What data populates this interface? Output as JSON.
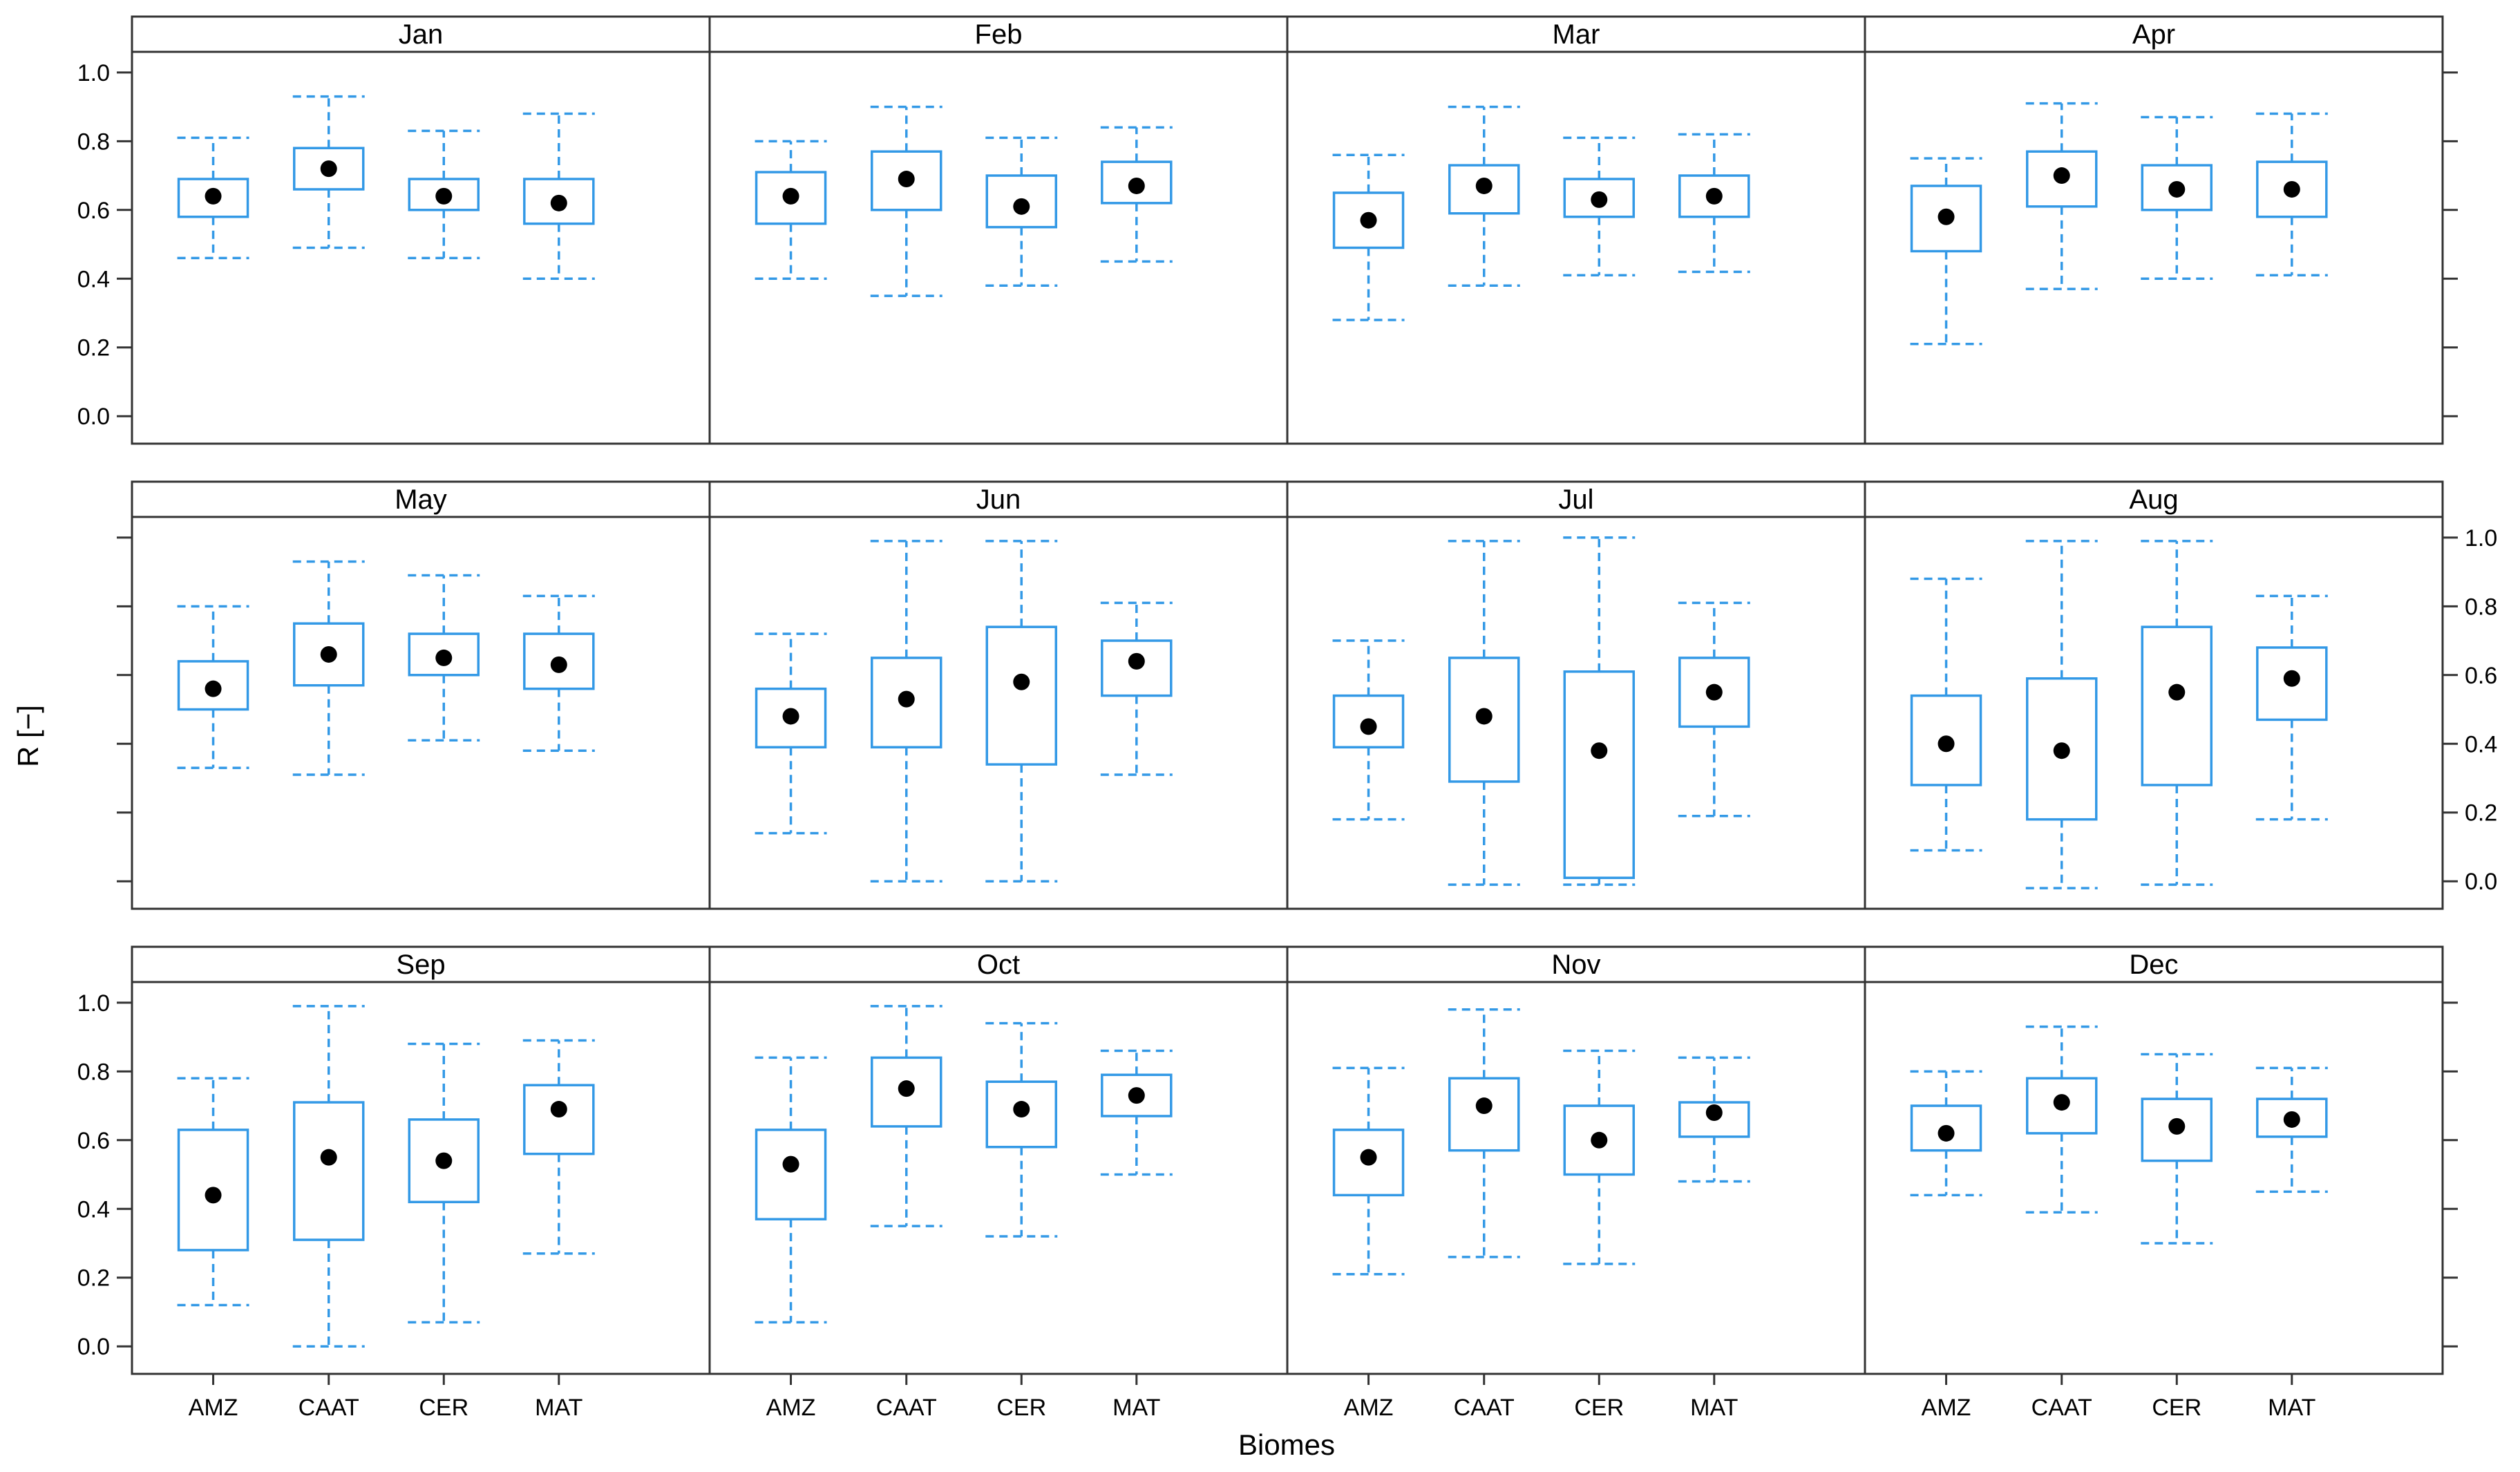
{
  "colors": {
    "box": "#3399e6",
    "frame": "#333333",
    "dot": "#000000"
  },
  "chart_data": {
    "type": "boxplot",
    "title": "",
    "xlabel": "Biomes",
    "ylabel": "R [−]",
    "ylim": [
      -0.08,
      1.06
    ],
    "yticks": [
      0.0,
      0.2,
      0.4,
      0.6,
      0.8,
      1.0
    ],
    "ytick_labels": [
      "0.0",
      "0.2",
      "0.4",
      "0.6",
      "0.8",
      "1.0"
    ],
    "categories": [
      "AMZ",
      "CAAT",
      "CER",
      "MAT"
    ],
    "layout": "3 rows x 4 columns",
    "panels": [
      {
        "month": "Jan",
        "boxes": [
          {
            "biome": "AMZ",
            "min": 0.46,
            "q1": 0.58,
            "median": 0.64,
            "q3": 0.69,
            "max": 0.81
          },
          {
            "biome": "CAAT",
            "min": 0.49,
            "q1": 0.66,
            "median": 0.72,
            "q3": 0.78,
            "max": 0.93
          },
          {
            "biome": "CER",
            "min": 0.46,
            "q1": 0.6,
            "median": 0.64,
            "q3": 0.69,
            "max": 0.83
          },
          {
            "biome": "MAT",
            "min": 0.4,
            "q1": 0.56,
            "median": 0.62,
            "q3": 0.69,
            "max": 0.88
          }
        ]
      },
      {
        "month": "Feb",
        "boxes": [
          {
            "biome": "AMZ",
            "min": 0.4,
            "q1": 0.56,
            "median": 0.64,
            "q3": 0.71,
            "max": 0.8
          },
          {
            "biome": "CAAT",
            "min": 0.35,
            "q1": 0.6,
            "median": 0.69,
            "q3": 0.77,
            "max": 0.9
          },
          {
            "biome": "CER",
            "min": 0.38,
            "q1": 0.55,
            "median": 0.61,
            "q3": 0.7,
            "max": 0.81
          },
          {
            "biome": "MAT",
            "min": 0.45,
            "q1": 0.62,
            "median": 0.67,
            "q3": 0.74,
            "max": 0.84
          }
        ]
      },
      {
        "month": "Mar",
        "boxes": [
          {
            "biome": "AMZ",
            "min": 0.28,
            "q1": 0.49,
            "median": 0.57,
            "q3": 0.65,
            "max": 0.76
          },
          {
            "biome": "CAAT",
            "min": 0.38,
            "q1": 0.59,
            "median": 0.67,
            "q3": 0.73,
            "max": 0.9
          },
          {
            "biome": "CER",
            "min": 0.41,
            "q1": 0.58,
            "median": 0.63,
            "q3": 0.69,
            "max": 0.81
          },
          {
            "biome": "MAT",
            "min": 0.42,
            "q1": 0.58,
            "median": 0.64,
            "q3": 0.7,
            "max": 0.82
          }
        ]
      },
      {
        "month": "Apr",
        "boxes": [
          {
            "biome": "AMZ",
            "min": 0.21,
            "q1": 0.48,
            "median": 0.58,
            "q3": 0.67,
            "max": 0.75
          },
          {
            "biome": "CAAT",
            "min": 0.37,
            "q1": 0.61,
            "median": 0.7,
            "q3": 0.77,
            "max": 0.91
          },
          {
            "biome": "CER",
            "min": 0.4,
            "q1": 0.6,
            "median": 0.66,
            "q3": 0.73,
            "max": 0.87
          },
          {
            "biome": "MAT",
            "min": 0.41,
            "q1": 0.58,
            "median": 0.66,
            "q3": 0.74,
            "max": 0.88
          }
        ]
      },
      {
        "month": "May",
        "boxes": [
          {
            "biome": "AMZ",
            "min": 0.33,
            "q1": 0.5,
            "median": 0.56,
            "q3": 0.64,
            "max": 0.8
          },
          {
            "biome": "CAAT",
            "min": 0.31,
            "q1": 0.57,
            "median": 0.66,
            "q3": 0.75,
            "max": 0.93
          },
          {
            "biome": "CER",
            "min": 0.41,
            "q1": 0.6,
            "median": 0.65,
            "q3": 0.72,
            "max": 0.89
          },
          {
            "biome": "MAT",
            "min": 0.38,
            "q1": 0.56,
            "median": 0.63,
            "q3": 0.72,
            "max": 0.83
          }
        ]
      },
      {
        "month": "Jun",
        "boxes": [
          {
            "biome": "AMZ",
            "min": 0.14,
            "q1": 0.39,
            "median": 0.48,
            "q3": 0.56,
            "max": 0.72
          },
          {
            "biome": "CAAT",
            "min": 0.0,
            "q1": 0.39,
            "median": 0.53,
            "q3": 0.65,
            "max": 0.99
          },
          {
            "biome": "CER",
            "min": 0.0,
            "q1": 0.34,
            "median": 0.58,
            "q3": 0.74,
            "max": 0.99
          },
          {
            "biome": "MAT",
            "min": 0.31,
            "q1": 0.54,
            "median": 0.64,
            "q3": 0.7,
            "max": 0.81
          }
        ]
      },
      {
        "month": "Jul",
        "boxes": [
          {
            "biome": "AMZ",
            "min": 0.18,
            "q1": 0.39,
            "median": 0.45,
            "q3": 0.54,
            "max": 0.7
          },
          {
            "biome": "CAAT",
            "min": -0.01,
            "q1": 0.29,
            "median": 0.48,
            "q3": 0.65,
            "max": 0.99
          },
          {
            "biome": "CER",
            "min": -0.01,
            "q1": 0.01,
            "median": 0.38,
            "q3": 0.61,
            "max": 1.0
          },
          {
            "biome": "MAT",
            "min": 0.19,
            "q1": 0.45,
            "median": 0.55,
            "q3": 0.65,
            "max": 0.81
          }
        ]
      },
      {
        "month": "Aug",
        "boxes": [
          {
            "biome": "AMZ",
            "min": 0.09,
            "q1": 0.28,
            "median": 0.4,
            "q3": 0.54,
            "max": 0.88
          },
          {
            "biome": "CAAT",
            "min": -0.02,
            "q1": 0.18,
            "median": 0.38,
            "q3": 0.59,
            "max": 0.99
          },
          {
            "biome": "CER",
            "min": -0.01,
            "q1": 0.28,
            "median": 0.55,
            "q3": 0.74,
            "max": 0.99
          },
          {
            "biome": "MAT",
            "min": 0.18,
            "q1": 0.47,
            "median": 0.59,
            "q3": 0.68,
            "max": 0.83
          }
        ]
      },
      {
        "month": "Sep",
        "boxes": [
          {
            "biome": "AMZ",
            "min": 0.12,
            "q1": 0.28,
            "median": 0.44,
            "q3": 0.63,
            "max": 0.78
          },
          {
            "biome": "CAAT",
            "min": 0.0,
            "q1": 0.31,
            "median": 0.55,
            "q3": 0.71,
            "max": 0.99
          },
          {
            "biome": "CER",
            "min": 0.07,
            "q1": 0.42,
            "median": 0.54,
            "q3": 0.66,
            "max": 0.88
          },
          {
            "biome": "MAT",
            "min": 0.27,
            "q1": 0.56,
            "median": 0.69,
            "q3": 0.76,
            "max": 0.89
          }
        ]
      },
      {
        "month": "Oct",
        "boxes": [
          {
            "biome": "AMZ",
            "min": 0.07,
            "q1": 0.37,
            "median": 0.53,
            "q3": 0.63,
            "max": 0.84
          },
          {
            "biome": "CAAT",
            "min": 0.35,
            "q1": 0.64,
            "median": 0.75,
            "q3": 0.84,
            "max": 0.99
          },
          {
            "biome": "CER",
            "min": 0.32,
            "q1": 0.58,
            "median": 0.69,
            "q3": 0.77,
            "max": 0.94
          },
          {
            "biome": "MAT",
            "min": 0.5,
            "q1": 0.67,
            "median": 0.73,
            "q3": 0.79,
            "max": 0.86
          }
        ]
      },
      {
        "month": "Nov",
        "boxes": [
          {
            "biome": "AMZ",
            "min": 0.21,
            "q1": 0.44,
            "median": 0.55,
            "q3": 0.63,
            "max": 0.81
          },
          {
            "biome": "CAAT",
            "min": 0.26,
            "q1": 0.57,
            "median": 0.7,
            "q3": 0.78,
            "max": 0.98
          },
          {
            "biome": "CER",
            "min": 0.24,
            "q1": 0.5,
            "median": 0.6,
            "q3": 0.7,
            "max": 0.86
          },
          {
            "biome": "MAT",
            "min": 0.48,
            "q1": 0.61,
            "median": 0.68,
            "q3": 0.71,
            "max": 0.84
          }
        ]
      },
      {
        "month": "Dec",
        "boxes": [
          {
            "biome": "AMZ",
            "min": 0.44,
            "q1": 0.57,
            "median": 0.62,
            "q3": 0.7,
            "max": 0.8
          },
          {
            "biome": "CAAT",
            "min": 0.39,
            "q1": 0.62,
            "median": 0.71,
            "q3": 0.78,
            "max": 0.93
          },
          {
            "biome": "CER",
            "min": 0.3,
            "q1": 0.54,
            "median": 0.64,
            "q3": 0.72,
            "max": 0.85
          },
          {
            "biome": "MAT",
            "min": 0.45,
            "q1": 0.61,
            "median": 0.66,
            "q3": 0.72,
            "max": 0.81
          }
        ]
      }
    ]
  }
}
